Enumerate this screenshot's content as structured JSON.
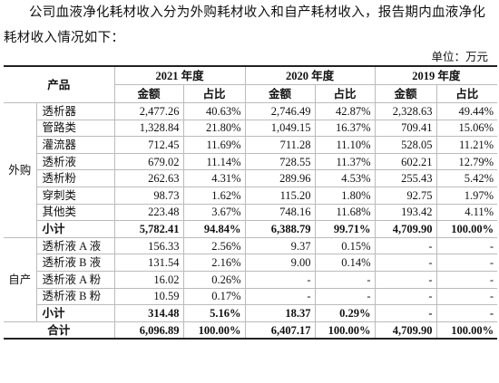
{
  "intro": "公司血液净化耗材收入分为外购耗材收入和自产耗材收入，报告期内血液净化耗材收入情况如下：",
  "unit": "单位：万元",
  "table": {
    "header": {
      "product": "产品",
      "years": [
        "2021 年度",
        "2020 年度",
        "2019 年度"
      ],
      "columns": [
        "金额",
        "占比",
        "金额",
        "占比",
        "金额",
        "占比"
      ]
    },
    "groups": [
      {
        "name": "外购",
        "rows": [
          {
            "product": "透析器",
            "cells": [
              "2,477.26",
              "40.63%",
              "2,746.49",
              "42.87%",
              "2,328.63",
              "49.44%"
            ]
          },
          {
            "product": "管路类",
            "cells": [
              "1,328.84",
              "21.80%",
              "1,049.15",
              "16.37%",
              "709.41",
              "15.06%"
            ]
          },
          {
            "product": "灌流器",
            "cells": [
              "712.45",
              "11.69%",
              "711.28",
              "11.10%",
              "528.05",
              "11.21%"
            ]
          },
          {
            "product": "透析液",
            "cells": [
              "679.02",
              "11.14%",
              "728.55",
              "11.37%",
              "602.21",
              "12.79%"
            ]
          },
          {
            "product": "透析粉",
            "cells": [
              "262.63",
              "4.31%",
              "289.96",
              "4.53%",
              "255.43",
              "5.42%"
            ]
          },
          {
            "product": "穿刺类",
            "cells": [
              "98.73",
              "1.62%",
              "115.20",
              "1.80%",
              "92.75",
              "1.97%"
            ]
          },
          {
            "product": "其他类",
            "cells": [
              "223.48",
              "3.67%",
              "748.16",
              "11.68%",
              "193.42",
              "4.11%"
            ]
          }
        ],
        "subtotal": {
          "label": "小计",
          "cells": [
            "5,782.41",
            "94.84%",
            "6,388.79",
            "99.71%",
            "4,709.90",
            "100.00%"
          ]
        }
      },
      {
        "name": "自产",
        "rows": [
          {
            "product": "透析液 A 液",
            "cells": [
              "156.33",
              "2.56%",
              "9.37",
              "0.15%",
              "-",
              "-"
            ]
          },
          {
            "product": "透析液 B 液",
            "cells": [
              "131.54",
              "2.16%",
              "9.00",
              "0.14%",
              "-",
              "-"
            ]
          },
          {
            "product": "透析液 A 粉",
            "cells": [
              "16.02",
              "0.26%",
              "-",
              "-",
              "-",
              "-"
            ]
          },
          {
            "product": "透析液 B 粉",
            "cells": [
              "10.59",
              "0.17%",
              "-",
              "-",
              "-",
              "-"
            ]
          }
        ],
        "subtotal": {
          "label": "小计",
          "cells": [
            "314.48",
            "5.16%",
            "18.37",
            "0.29%",
            "-",
            "-"
          ]
        }
      }
    ],
    "total": {
      "label": "合计",
      "cells": [
        "6,096.89",
        "100.00%",
        "6,407.17",
        "100.00%",
        "4,709.90",
        "100.00%"
      ]
    }
  }
}
